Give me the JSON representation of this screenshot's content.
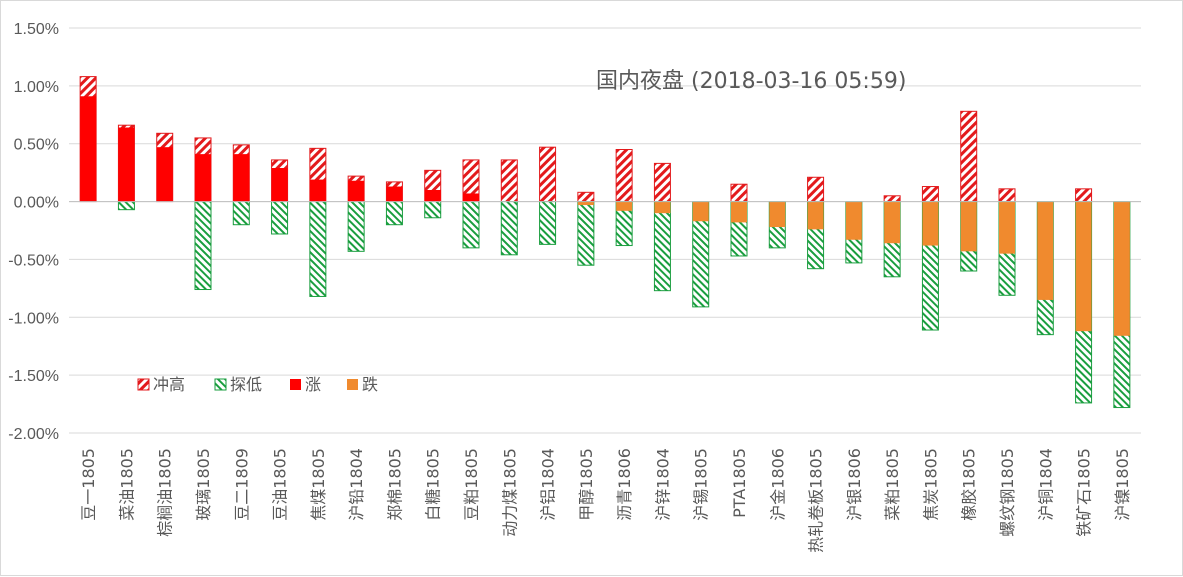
{
  "chart_data": {
    "type": "bar",
    "title": "国内夜盘 (2018-03-16 05:59)",
    "xlabel": "",
    "ylabel": "",
    "ylim": [
      -2.0,
      1.5
    ],
    "yticks": [
      1.5,
      1.0,
      0.5,
      0.0,
      -0.5,
      -1.0,
      -1.5,
      -2.0
    ],
    "ytick_labels": [
      "1.50%",
      "1.00%",
      "0.50%",
      "0.00%",
      "-0.50%",
      "-1.00%",
      "-1.50%",
      "-2.00%"
    ],
    "grid": true,
    "legend_position": "lower-left",
    "categories": [
      "豆一1805",
      "菜油1805",
      "棕榈油1805",
      "玻璃1805",
      "豆二1809",
      "豆油1805",
      "焦煤1805",
      "沪铅1804",
      "郑棉1805",
      "白糖1805",
      "豆粕1805",
      "动力煤1805",
      "沪铝1804",
      "甲醇1805",
      "沥青1806",
      "沪锌1804",
      "沪锡1805",
      "PTA1805",
      "沪金1806",
      "热轧卷板1805",
      "沪银1806",
      "菜粕1805",
      "焦炭1805",
      "橡胶1805",
      "螺纹钢1805",
      "沪铜1804",
      "铁矿石1805",
      "沪镍1805"
    ],
    "series": [
      {
        "name": "冲高",
        "color": "#e31a1c",
        "pattern": "diagonal-hatch",
        "values": [
          1.08,
          0.66,
          0.59,
          0.55,
          0.49,
          0.36,
          0.46,
          0.22,
          0.17,
          0.27,
          0.36,
          0.36,
          0.47,
          0.08,
          0.45,
          0.33,
          0.0,
          0.15,
          0.0,
          0.21,
          0.0,
          0.05,
          0.13,
          0.78,
          0.11,
          0.0,
          0.11,
          0.0
        ]
      },
      {
        "name": "探低",
        "color": "#1a9e3f",
        "pattern": "dotted-hatch",
        "values": [
          0.0,
          -0.07,
          0.0,
          -0.76,
          -0.2,
          -0.28,
          -0.82,
          -0.43,
          -0.2,
          -0.14,
          -0.4,
          -0.46,
          -0.37,
          -0.55,
          -0.38,
          -0.77,
          -0.91,
          -0.47,
          -0.4,
          -0.58,
          -0.53,
          -0.65,
          -1.11,
          -0.6,
          -0.81,
          -1.15,
          -1.74,
          -1.78
        ]
      },
      {
        "name": "涨",
        "color": "#ff0000",
        "pattern": "solid",
        "values": [
          0.91,
          0.64,
          0.47,
          0.41,
          0.41,
          0.29,
          0.19,
          0.18,
          0.13,
          0.1,
          0.07,
          0.0,
          0.0,
          0.0,
          0.0,
          0.0,
          0.0,
          0.0,
          0.0,
          0.0,
          0.0,
          0.0,
          0.0,
          0.0,
          0.0,
          0.0,
          0.0,
          0.0
        ]
      },
      {
        "name": "跌",
        "color": "#f08a2e",
        "pattern": "solid",
        "values": [
          0.0,
          0.0,
          0.0,
          0.0,
          0.0,
          0.0,
          0.0,
          0.0,
          0.0,
          0.0,
          0.0,
          0.0,
          0.0,
          -0.03,
          -0.08,
          -0.1,
          -0.17,
          -0.18,
          -0.22,
          -0.24,
          -0.33,
          -0.36,
          -0.38,
          -0.43,
          -0.45,
          -0.85,
          -1.12,
          -1.16
        ]
      }
    ]
  }
}
